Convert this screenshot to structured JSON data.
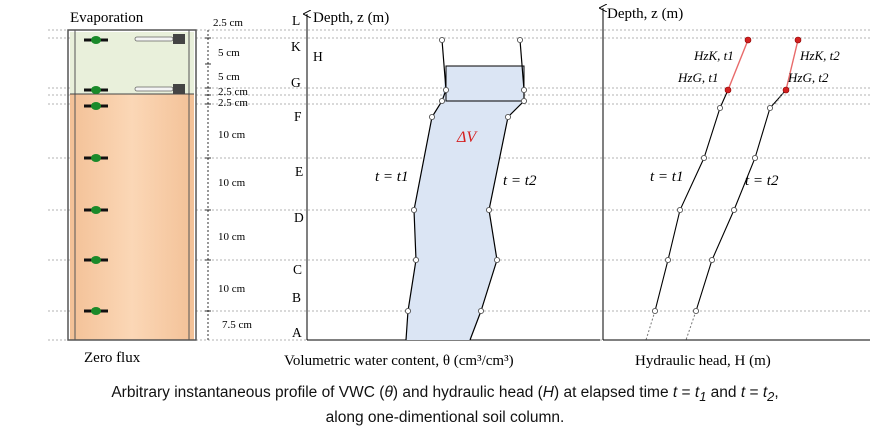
{
  "column": {
    "top_label": "Evaporation",
    "bottom_label": "Zero flux",
    "spacings": [
      "2.5 cm",
      "5 cm",
      "5 cm",
      "2.5 cm",
      "2.5 cm",
      "10 cm",
      "10 cm",
      "10 cm",
      "10 cm",
      "7.5 cm"
    ]
  },
  "depth_letters": [
    "L",
    "K",
    "H",
    "G",
    "F",
    "E",
    "D",
    "C",
    "B",
    "A"
  ],
  "vwc_panel": {
    "y_axis_label": "Depth, z (m)",
    "x_axis_label": "Volumetric water content, θ (cm³/cm³)",
    "delta_label": "ΔV",
    "curve_t1_label": "t = t1",
    "curve_t2_label": "t = t2"
  },
  "head_panel": {
    "y_axis_label": "Depth, z (m)",
    "x_axis_label": "Hydraulic head, H (m)",
    "curve_t1_label": "t = t1",
    "curve_t2_label": "t = t2",
    "labels": {
      "hzk_t1": "HzK, t1",
      "hzk_t2": "HzK, t2",
      "hzg_t1": "HzG, t1",
      "hzg_t2": "HzG, t2"
    }
  },
  "caption": {
    "line1_parts": [
      "Arbitrary instantaneous profile of VWC (",
      "θ",
      ") and hydraulic head (",
      "H",
      ") at elapsed time ",
      "t",
      " = ",
      "t",
      "1",
      " and ",
      "t",
      " = ",
      "t",
      "2",
      ","
    ],
    "line2": "along one-dimentional soil column."
  },
  "colors": {
    "soil_upper": "#eaf0dc",
    "soil_lower": "#f5c9a0",
    "sensor": "#1a8a2a",
    "delta_fill": "#dde7f5",
    "accent_red": "#d42020",
    "grid": "#999999"
  }
}
